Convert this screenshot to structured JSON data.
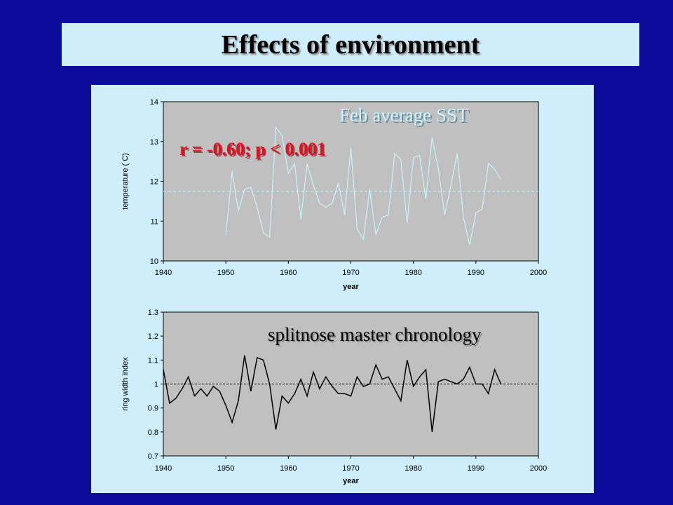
{
  "slide": {
    "title": "Effects of environment"
  },
  "chart_data": [
    {
      "type": "line",
      "xlabel": "year",
      "ylabel": "temperature ( C)",
      "xlim": [
        1940,
        2000
      ],
      "ylim": [
        10,
        14
      ],
      "xticks": [
        "1940",
        "1950",
        "1960",
        "1970",
        "1980",
        "1990",
        "2000"
      ],
      "yticks": [
        "10",
        "11",
        "12",
        "13",
        "14"
      ],
      "annotations": {
        "label": "Feb average SST",
        "stat": "r = -0.60; p < 0.001"
      },
      "reference_line": 11.75,
      "series": [
        {
          "color": "#c8f4ff",
          "x": [
            1950,
            1951,
            1952,
            1953,
            1954,
            1955,
            1956,
            1957,
            1958,
            1959,
            1960,
            1961,
            1962,
            1963,
            1964,
            1965,
            1966,
            1967,
            1968,
            1969,
            1970,
            1971,
            1972,
            1973,
            1974,
            1975,
            1976,
            1977,
            1978,
            1979,
            1980,
            1981,
            1982,
            1983,
            1984,
            1985,
            1986,
            1987,
            1988,
            1989,
            1990,
            1991,
            1992,
            1993,
            1994
          ],
          "y": [
            10.65,
            12.25,
            11.25,
            11.8,
            11.85,
            11.35,
            10.7,
            10.6,
            13.35,
            13.15,
            12.2,
            12.45,
            11.05,
            12.45,
            11.9,
            11.45,
            11.35,
            11.45,
            11.95,
            11.15,
            12.85,
            10.8,
            10.55,
            11.8,
            10.65,
            11.1,
            11.15,
            12.7,
            12.55,
            10.95,
            12.6,
            12.65,
            11.55,
            13.1,
            12.3,
            11.15,
            11.9,
            12.7,
            11.1,
            10.4,
            11.2,
            11.3,
            12.45,
            12.3,
            12.05
          ]
        }
      ]
    },
    {
      "type": "line",
      "xlabel": "year",
      "ylabel": "ring width index",
      "xlim": [
        1940,
        2000
      ],
      "ylim": [
        0.7,
        1.3
      ],
      "xticks": [
        "1940",
        "1950",
        "1960",
        "1970",
        "1980",
        "1990",
        "2000"
      ],
      "yticks": [
        "0.7",
        "0.8",
        "0.9",
        "1",
        "1.1",
        "1.2",
        "1.3"
      ],
      "annotations": {
        "label": "splitnose master chronology"
      },
      "reference_line": 1.0,
      "series": [
        {
          "color": "#000000",
          "x": [
            1940,
            1941,
            1942,
            1943,
            1944,
            1945,
            1946,
            1947,
            1948,
            1949,
            1950,
            1951,
            1952,
            1953,
            1954,
            1955,
            1956,
            1957,
            1958,
            1959,
            1960,
            1961,
            1962,
            1963,
            1964,
            1965,
            1966,
            1967,
            1968,
            1969,
            1970,
            1971,
            1972,
            1973,
            1974,
            1975,
            1976,
            1977,
            1978,
            1979,
            1980,
            1981,
            1982,
            1983,
            1984,
            1985,
            1986,
            1987,
            1988,
            1989,
            1990,
            1991,
            1992,
            1993,
            1994
          ],
          "y": [
            1.06,
            0.92,
            0.94,
            0.98,
            1.03,
            0.95,
            0.98,
            0.95,
            0.99,
            0.97,
            0.91,
            0.84,
            0.93,
            1.12,
            0.97,
            1.11,
            1.1,
            1.0,
            0.81,
            0.95,
            0.92,
            0.96,
            1.02,
            0.95,
            1.05,
            0.98,
            1.03,
            0.99,
            0.96,
            0.96,
            0.95,
            1.03,
            0.99,
            1.0,
            1.08,
            1.02,
            1.03,
            0.98,
            0.93,
            1.1,
            0.99,
            1.03,
            1.06,
            0.8,
            1.01,
            1.02,
            1.01,
            1.0,
            1.02,
            1.07,
            1.0,
            1.0,
            0.96,
            1.06,
            1.0
          ]
        }
      ]
    }
  ]
}
